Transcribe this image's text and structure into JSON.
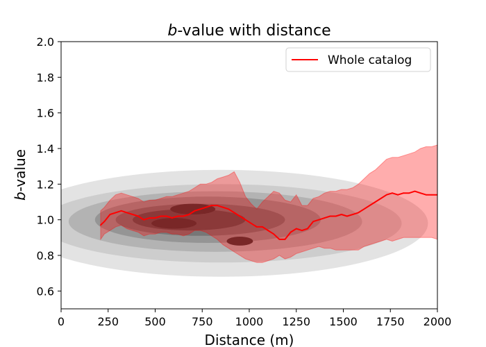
{
  "chart_data": {
    "type": "line",
    "title_prefix": "b",
    "title_suffix": "-value with distance",
    "xlabel": "Distance (m)",
    "ylabel_prefix": "b",
    "ylabel_suffix": "-value",
    "xlim": [
      0,
      2000
    ],
    "ylim": [
      0.5,
      2.0
    ],
    "x_ticks": [
      0,
      250,
      500,
      750,
      1000,
      1250,
      1500,
      1750,
      2000
    ],
    "y_ticks": [
      0.6,
      0.8,
      1.0,
      1.2,
      1.4,
      1.6,
      1.8,
      2.0
    ],
    "grid": false,
    "legend_position": "top-right",
    "series": [
      {
        "name": "Whole catalog",
        "color": "#ff0000",
        "x": [
          210,
          230,
          260,
          290,
          320,
          350,
          380,
          410,
          440,
          470,
          500,
          530,
          560,
          590,
          620,
          650,
          680,
          710,
          740,
          770,
          800,
          830,
          860,
          890,
          920,
          950,
          980,
          1010,
          1040,
          1070,
          1100,
          1130,
          1160,
          1190,
          1220,
          1250,
          1280,
          1310,
          1340,
          1370,
          1400,
          1430,
          1460,
          1490,
          1520,
          1550,
          1580,
          1610,
          1640,
          1670,
          1700,
          1730,
          1760,
          1790,
          1820,
          1850,
          1880,
          1910,
          1940,
          1970,
          2000
        ],
        "values": [
          0.97,
          0.99,
          1.03,
          1.04,
          1.05,
          1.04,
          1.03,
          1.02,
          1.0,
          1.01,
          1.01,
          1.02,
          1.02,
          1.01,
          1.02,
          1.02,
          1.03,
          1.05,
          1.06,
          1.07,
          1.08,
          1.08,
          1.07,
          1.06,
          1.04,
          1.02,
          1.0,
          0.98,
          0.96,
          0.96,
          0.94,
          0.92,
          0.89,
          0.89,
          0.93,
          0.95,
          0.94,
          0.95,
          0.99,
          1.0,
          1.01,
          1.02,
          1.02,
          1.03,
          1.02,
          1.03,
          1.04,
          1.06,
          1.08,
          1.1,
          1.12,
          1.14,
          1.15,
          1.14,
          1.15,
          1.15,
          1.16,
          1.15,
          1.14,
          1.14,
          1.14
        ],
        "band_upper": [
          1.05,
          1.07,
          1.11,
          1.14,
          1.15,
          1.14,
          1.13,
          1.12,
          1.1,
          1.11,
          1.11,
          1.12,
          1.13,
          1.13,
          1.14,
          1.15,
          1.16,
          1.18,
          1.2,
          1.2,
          1.21,
          1.23,
          1.24,
          1.25,
          1.27,
          1.21,
          1.13,
          1.09,
          1.06,
          1.1,
          1.13,
          1.16,
          1.15,
          1.11,
          1.1,
          1.14,
          1.08,
          1.08,
          1.12,
          1.13,
          1.15,
          1.16,
          1.16,
          1.17,
          1.17,
          1.18,
          1.2,
          1.23,
          1.26,
          1.28,
          1.31,
          1.34,
          1.35,
          1.35,
          1.36,
          1.37,
          1.38,
          1.4,
          1.41,
          1.41,
          1.42
        ],
        "band_lower": [
          0.89,
          0.92,
          0.94,
          0.96,
          0.97,
          0.95,
          0.94,
          0.93,
          0.91,
          0.92,
          0.92,
          0.93,
          0.93,
          0.92,
          0.92,
          0.91,
          0.92,
          0.94,
          0.94,
          0.93,
          0.91,
          0.89,
          0.86,
          0.84,
          0.82,
          0.8,
          0.78,
          0.77,
          0.76,
          0.76,
          0.77,
          0.78,
          0.8,
          0.78,
          0.79,
          0.81,
          0.82,
          0.83,
          0.84,
          0.85,
          0.84,
          0.84,
          0.83,
          0.83,
          0.83,
          0.83,
          0.83,
          0.85,
          0.86,
          0.87,
          0.88,
          0.89,
          0.88,
          0.89,
          0.9,
          0.9,
          0.9,
          0.9,
          0.9,
          0.9,
          0.89
        ]
      }
    ],
    "density_levels": [
      {
        "cx": 850,
        "cy": 0.98,
        "rx": 1100,
        "ry": 0.3,
        "fill": "#e3e3e3"
      },
      {
        "cx": 850,
        "cy": 0.98,
        "rx": 960,
        "ry": 0.22,
        "fill": "#cdcdcd"
      },
      {
        "cx": 820,
        "cy": 0.99,
        "rx": 780,
        "ry": 0.17,
        "fill": "#b3b3b3"
      },
      {
        "cx": 780,
        "cy": 1.0,
        "rx": 600,
        "ry": 0.13,
        "fill": "#959595"
      },
      {
        "cx": 740,
        "cy": 1.0,
        "rx": 450,
        "ry": 0.09,
        "fill": "#777777"
      },
      {
        "cx": 680,
        "cy": 1.0,
        "rx": 300,
        "ry": 0.06,
        "fill": "#555555"
      },
      {
        "cx": 600,
        "cy": 0.98,
        "rx": 120,
        "ry": 0.03,
        "fill": "#3a3a3a"
      },
      {
        "cx": 700,
        "cy": 1.06,
        "rx": 120,
        "ry": 0.03,
        "fill": "#3a3a3a"
      },
      {
        "cx": 950,
        "cy": 0.88,
        "rx": 70,
        "ry": 0.025,
        "fill": "#3a3a3a"
      }
    ]
  }
}
